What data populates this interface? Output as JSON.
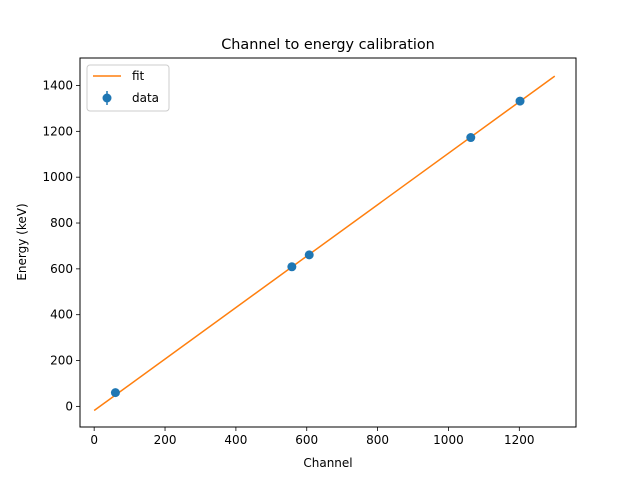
{
  "chart_data": {
    "type": "scatter",
    "title": "Channel to energy calibration",
    "xlabel": "Channel",
    "ylabel": "Energy (keV)",
    "xlim": [
      -40,
      1360
    ],
    "ylim": [
      -90,
      1520
    ],
    "xticks": [
      0,
      200,
      400,
      600,
      800,
      1000,
      1200
    ],
    "yticks": [
      0,
      200,
      400,
      600,
      800,
      1000,
      1200,
      1400
    ],
    "grid": false,
    "legend_position": "top-left",
    "series": [
      {
        "name": "fit",
        "kind": "line",
        "color": "#ff7f0e",
        "points": [
          [
            0,
            -18
          ],
          [
            1300,
            1441
          ]
        ]
      },
      {
        "name": "data",
        "kind": "errorbar-scatter",
        "color": "#1f77b4",
        "points": [
          [
            60,
            60
          ],
          [
            558,
            609
          ],
          [
            607,
            661
          ],
          [
            1063,
            1173
          ],
          [
            1202,
            1332
          ]
        ]
      }
    ]
  }
}
